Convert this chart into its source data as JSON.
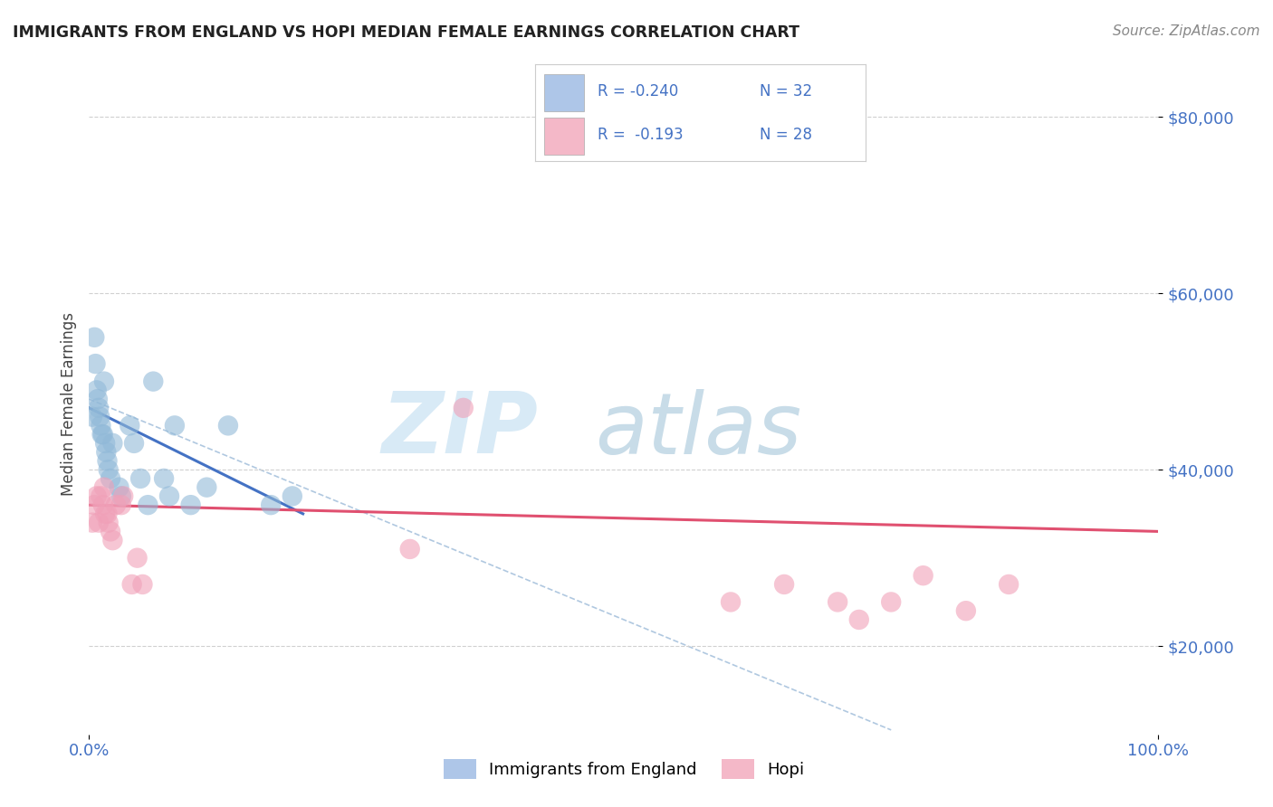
{
  "title": "IMMIGRANTS FROM ENGLAND VS HOPI MEDIAN FEMALE EARNINGS CORRELATION CHART",
  "source": "Source: ZipAtlas.com",
  "ylabel": "Median Female Earnings",
  "xlim": [
    0,
    1.0
  ],
  "ylim": [
    10000,
    85000
  ],
  "x_tick_labels": [
    "0.0%",
    "100.0%"
  ],
  "y_tick_labels": [
    "$20,000",
    "$40,000",
    "$60,000",
    "$80,000"
  ],
  "y_tick_values": [
    20000,
    40000,
    60000,
    80000
  ],
  "legend_entries": [
    {
      "label_r": "R = -0.240",
      "label_n": "N = 32",
      "color": "#aec6e8"
    },
    {
      "label_r": "R =  -0.193",
      "label_n": "N = 28",
      "color": "#f4b8c8"
    }
  ],
  "footer_labels": [
    "Immigrants from England",
    "Hopi"
  ],
  "footer_colors": [
    "#aec6e8",
    "#f4b8c8"
  ],
  "blue_scatter_x": [
    0.003,
    0.005,
    0.006,
    0.007,
    0.008,
    0.009,
    0.01,
    0.011,
    0.012,
    0.013,
    0.014,
    0.015,
    0.016,
    0.017,
    0.018,
    0.02,
    0.022,
    0.028,
    0.03,
    0.038,
    0.042,
    0.048,
    0.055,
    0.06,
    0.07,
    0.075,
    0.08,
    0.095,
    0.11,
    0.13,
    0.17,
    0.19
  ],
  "blue_scatter_y": [
    46000,
    55000,
    52000,
    49000,
    48000,
    47000,
    46000,
    45000,
    44000,
    44000,
    50000,
    43000,
    42000,
    41000,
    40000,
    39000,
    43000,
    38000,
    37000,
    45000,
    43000,
    39000,
    36000,
    50000,
    39000,
    37000,
    45000,
    36000,
    38000,
    45000,
    36000,
    37000
  ],
  "pink_scatter_x": [
    0.003,
    0.005,
    0.007,
    0.009,
    0.011,
    0.013,
    0.014,
    0.015,
    0.017,
    0.018,
    0.02,
    0.022,
    0.025,
    0.03,
    0.032,
    0.04,
    0.045,
    0.05,
    0.3,
    0.35,
    0.6,
    0.65,
    0.7,
    0.72,
    0.75,
    0.78,
    0.82,
    0.86
  ],
  "pink_scatter_y": [
    34000,
    36000,
    37000,
    34000,
    37000,
    36000,
    38000,
    35000,
    35000,
    34000,
    33000,
    32000,
    36000,
    36000,
    37000,
    27000,
    30000,
    27000,
    31000,
    47000,
    25000,
    27000,
    25000,
    23000,
    25000,
    28000,
    24000,
    27000
  ],
  "blue_line_x": [
    0.0,
    0.2
  ],
  "blue_line_y": [
    47000,
    35000
  ],
  "pink_line_x": [
    0.0,
    1.0
  ],
  "pink_line_y": [
    36000,
    33000
  ],
  "dashed_line_x": [
    0.0,
    0.75
  ],
  "dashed_line_y": [
    48000,
    10500
  ],
  "bg_color": "#ffffff",
  "grid_color": "#d0d0d0",
  "title_color": "#222222",
  "axis_label_color": "#444444",
  "tick_color": "#4472c4",
  "blue_dot_color": "#91b9d8",
  "pink_dot_color": "#f0a0b8",
  "blue_line_color": "#4472c4",
  "pink_line_color": "#e05070",
  "dashed_line_color": "#b0c8e0"
}
